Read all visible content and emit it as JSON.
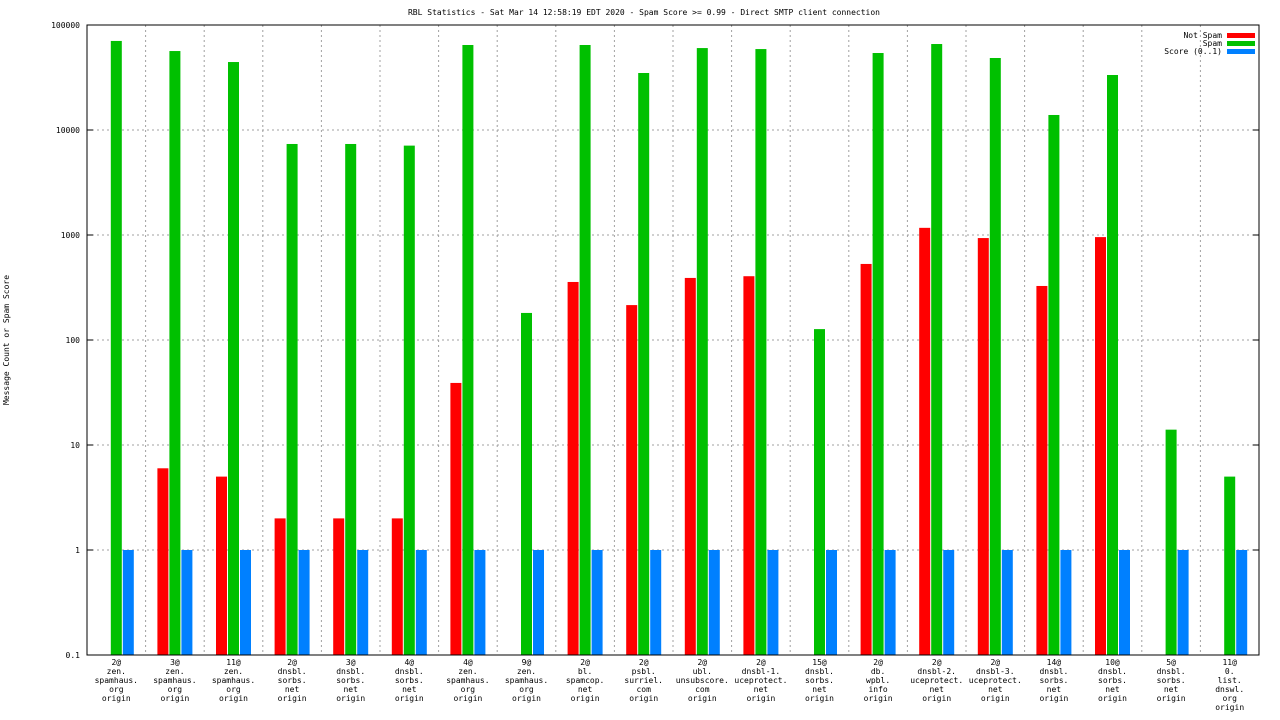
{
  "chart_data": {
    "type": "bar",
    "title": "RBL Statistics - Sat Mar 14 12:58:19 EDT 2020 - Spam Score >= 0.99 - Direct SMTP client connection",
    "xlabel": "",
    "ylabel": "Message Count or Spam Score",
    "yscale": "log",
    "ylim": [
      0.1,
      100000
    ],
    "yticks": [
      "0.1",
      "1",
      "10",
      "100",
      "1000",
      "10000",
      "100000"
    ],
    "grid": true,
    "legend_position": "top-right",
    "categories": [
      [
        "2@",
        "zen.",
        "spamhaus.",
        "org",
        "origin"
      ],
      [
        "3@",
        "zen.",
        "spamhaus.",
        "org",
        "origin"
      ],
      [
        "11@",
        "zen.",
        "spamhaus.",
        "org",
        "origin"
      ],
      [
        "2@",
        "dnsbl.",
        "sorbs.",
        "net",
        "origin"
      ],
      [
        "3@",
        "dnsbl.",
        "sorbs.",
        "net",
        "origin"
      ],
      [
        "4@",
        "dnsbl.",
        "sorbs.",
        "net",
        "origin"
      ],
      [
        "4@",
        "zen.",
        "spamhaus.",
        "org",
        "origin"
      ],
      [
        "9@",
        "zen.",
        "spamhaus.",
        "org",
        "origin"
      ],
      [
        "2@",
        "bl.",
        "spamcop.",
        "net",
        "origin"
      ],
      [
        "2@",
        "psbl.",
        "surriel.",
        "com",
        "origin"
      ],
      [
        "2@",
        "ubl.",
        "unsubscore.",
        "com",
        "origin"
      ],
      [
        "2@",
        "dnsbl-1.",
        "uceprotect.",
        "net",
        "origin"
      ],
      [
        "15@",
        "dnsbl.",
        "sorbs.",
        "net",
        "origin"
      ],
      [
        "2@",
        "db.",
        "wpbl.",
        "info",
        "origin"
      ],
      [
        "2@",
        "dnsbl-2.",
        "uceprotect.",
        "net",
        "origin"
      ],
      [
        "2@",
        "dnsbl-3.",
        "uceprotect.",
        "net",
        "origin"
      ],
      [
        "14@",
        "dnsbl.",
        "sorbs.",
        "net",
        "origin"
      ],
      [
        "10@",
        "dnsbl.",
        "sorbs.",
        "net",
        "origin"
      ],
      [
        "5@",
        "dnsbl.",
        "sorbs.",
        "net",
        "origin"
      ],
      [
        "11@",
        "0.",
        "list.",
        "dnswl.",
        "org",
        "origin"
      ]
    ],
    "series": [
      {
        "name": "Not Spam",
        "color": "#ff0000",
        "values": [
          null,
          6,
          5,
          2,
          2,
          2,
          39,
          null,
          357,
          215,
          390,
          405,
          null,
          530,
          1170,
          935,
          327,
          955,
          null,
          null
        ]
      },
      {
        "name": "Spam",
        "color": "#00c000",
        "values": [
          70500,
          56500,
          44400,
          7360,
          7360,
          7100,
          64500,
          181,
          64500,
          34900,
          60300,
          59000,
          127,
          54100,
          65900,
          48500,
          13900,
          33400,
          14,
          5
        ]
      },
      {
        "name": "Score (0..1)",
        "color": "#0080ff",
        "values": [
          1,
          1,
          1,
          1,
          1,
          1,
          1,
          1,
          1,
          1,
          1,
          1,
          1,
          1,
          1,
          1,
          1,
          1,
          1,
          1
        ]
      }
    ]
  }
}
